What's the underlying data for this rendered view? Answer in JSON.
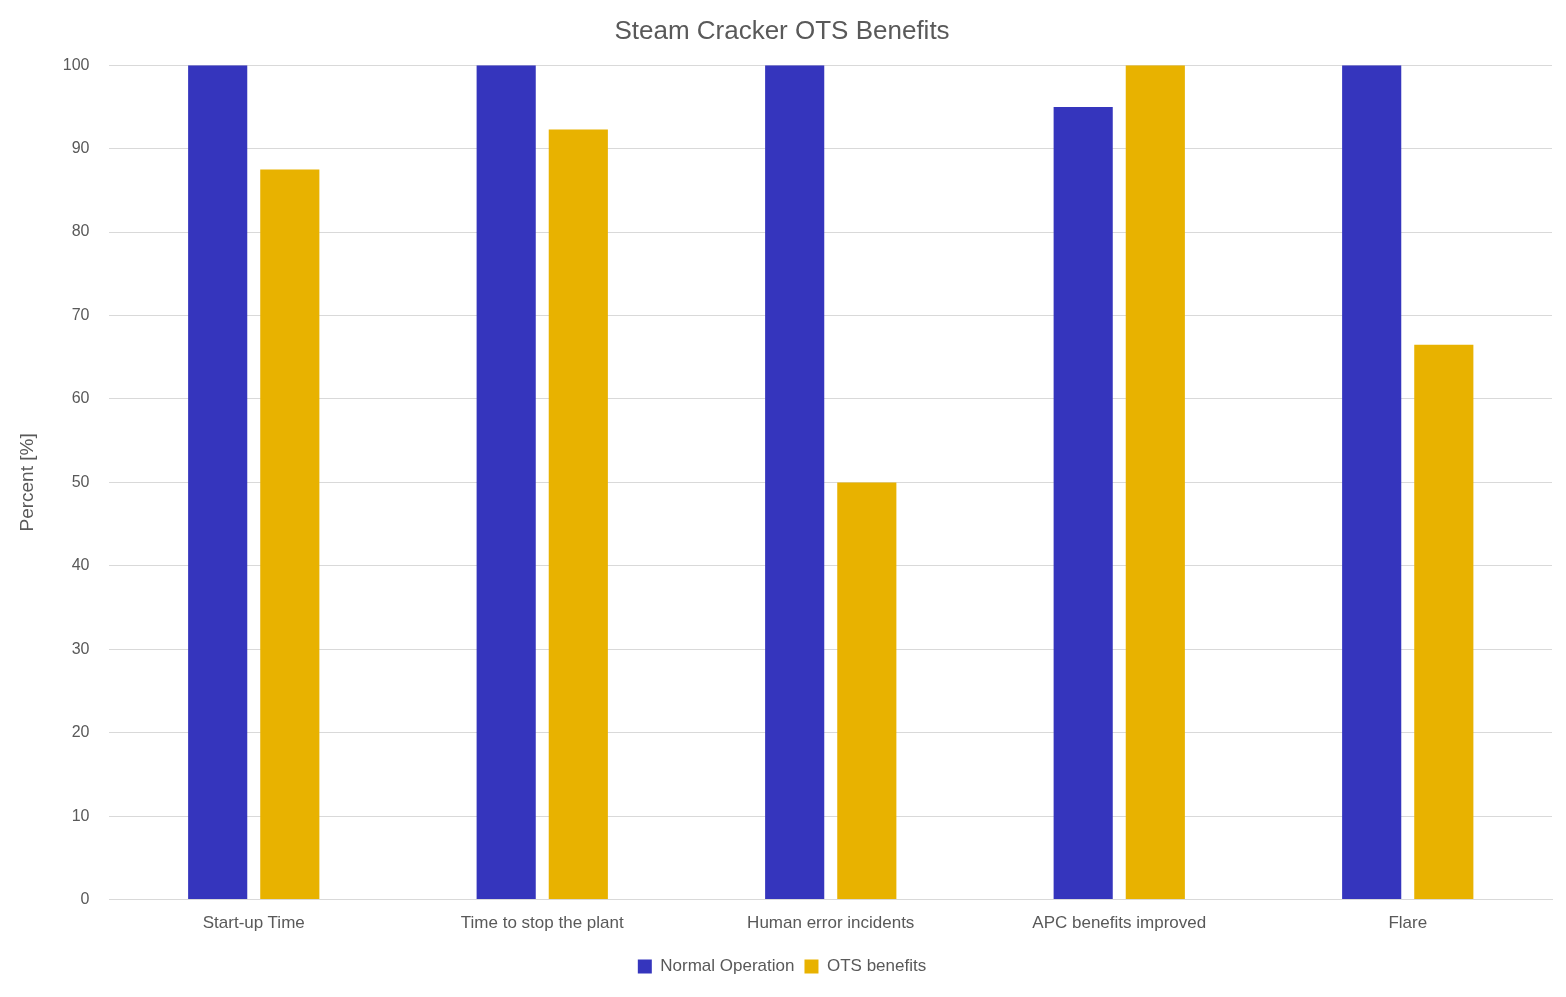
{
  "chart_data": {
    "type": "bar",
    "title": "Steam Cracker OTS Benefits",
    "ylabel": "Percent [%]",
    "categories": [
      "Start-up Time",
      "Time to stop the plant",
      "Human error incidents",
      "APC benefits improved",
      "Flare"
    ],
    "series": [
      {
        "name": "Normal Operation",
        "color": "#3535bd",
        "values": [
          100,
          100,
          100,
          95,
          100
        ]
      },
      {
        "name": "OTS benefits",
        "color": "#e8b200",
        "values": [
          87.5,
          92.3,
          50,
          100,
          66.5
        ]
      }
    ],
    "ylim": [
      0,
      100
    ],
    "yticks": [
      0,
      10,
      20,
      30,
      40,
      50,
      60,
      70,
      80,
      90,
      100
    ],
    "grid": "y",
    "legend": "bottom"
  }
}
